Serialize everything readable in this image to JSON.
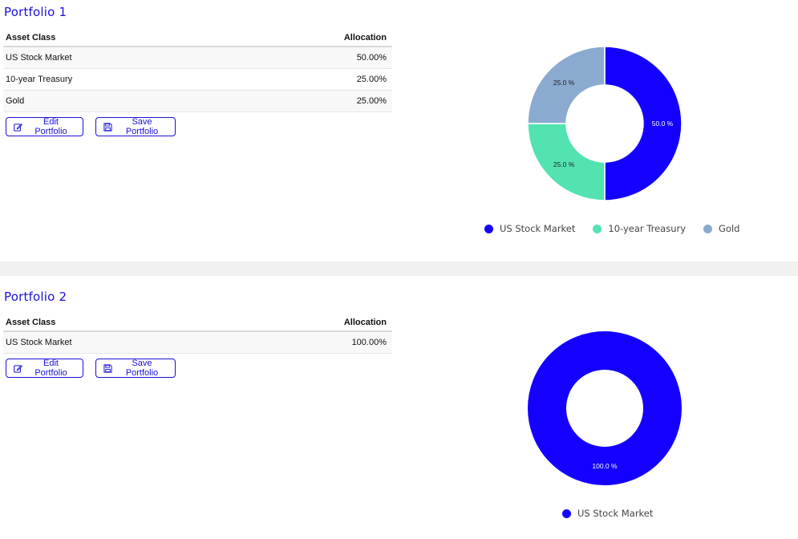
{
  "portfolios": [
    {
      "title": "Portfolio 1",
      "table": {
        "headers": [
          "Asset Class",
          "Allocation"
        ],
        "rows": [
          {
            "asset": "US Stock Market",
            "allocation": "50.00%"
          },
          {
            "asset": "10-year Treasury",
            "allocation": "25.00%"
          },
          {
            "asset": "Gold",
            "allocation": "25.00%"
          }
        ]
      },
      "buttons": {
        "edit": "Edit Portfolio",
        "save": "Save Portfolio"
      }
    },
    {
      "title": "Portfolio 2",
      "table": {
        "headers": [
          "Asset Class",
          "Allocation"
        ],
        "rows": [
          {
            "asset": "US Stock Market",
            "allocation": "100.00%"
          }
        ]
      },
      "buttons": {
        "edit": "Edit Portfolio",
        "save": "Save Portfolio"
      }
    }
  ],
  "icons": {
    "edit": "edit-icon",
    "save": "save-icon"
  },
  "colors": {
    "accent": "#1a10d8",
    "us_stock": "#1400ff",
    "treasury": "#52e3b1",
    "gold": "#8aaacf"
  },
  "chart_data": [
    {
      "type": "pie",
      "donut": true,
      "categories": [
        "US Stock Market",
        "10-year Treasury",
        "Gold"
      ],
      "values": [
        50.0,
        25.0,
        25.0
      ],
      "data_labels": [
        "50.0 %",
        "25.0 %",
        "25.0 %"
      ],
      "colors": [
        "#1400ff",
        "#52e3b1",
        "#8aaacf"
      ],
      "legend": "bottom"
    },
    {
      "type": "pie",
      "donut": true,
      "categories": [
        "US Stock Market"
      ],
      "values": [
        100.0
      ],
      "data_labels": [
        "100.0 %"
      ],
      "colors": [
        "#1400ff"
      ],
      "legend": "bottom"
    }
  ]
}
